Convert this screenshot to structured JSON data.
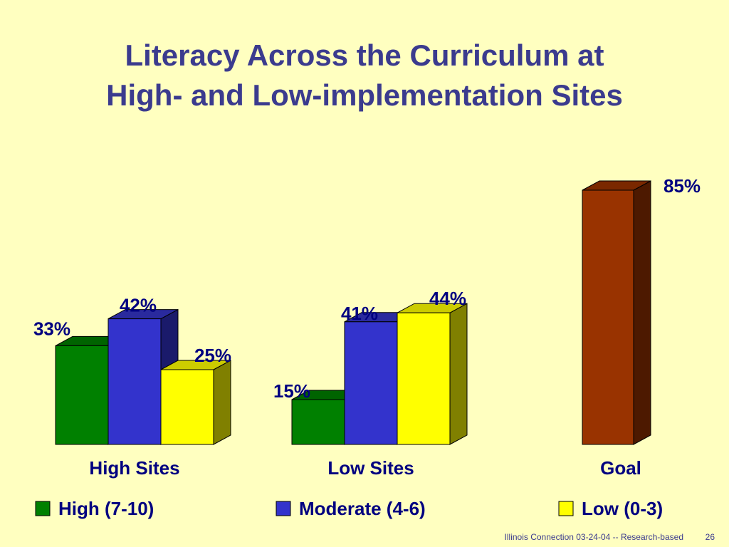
{
  "slide": {
    "title_line1": "Literacy Across the Curriculum at",
    "title_line2": "High- and Low-implementation Sites",
    "footer_text": "Illinois Connection 03-24-04 -- Research-based",
    "page_number": "26"
  },
  "chart_data": {
    "type": "bar",
    "title": "Literacy Across the Curriculum at High- and Low-implementation Sites",
    "xlabel": "",
    "ylabel": "",
    "ylim": [
      0,
      100
    ],
    "grid": false,
    "legend_position": "bottom",
    "groups": [
      {
        "category": "High Sites",
        "bars": [
          {
            "series": "High (7-10)",
            "value": 33,
            "label": "33%"
          },
          {
            "series": "Moderate (4-6)",
            "value": 42,
            "label": "42%"
          },
          {
            "series": "Low (0-3)",
            "value": 25,
            "label": "25%"
          }
        ]
      },
      {
        "category": "Low Sites",
        "bars": [
          {
            "series": "High (7-10)",
            "value": 15,
            "label": "15%"
          },
          {
            "series": "Moderate (4-6)",
            "value": 41,
            "label": "41%"
          },
          {
            "series": "Low (0-3)",
            "value": 44,
            "label": "44%"
          }
        ]
      },
      {
        "category": "Goal",
        "bars": [
          {
            "series": "Goal",
            "value": 85,
            "label": "85%"
          }
        ]
      }
    ],
    "legend": [
      {
        "name": "High (7-10)",
        "color": "#008000"
      },
      {
        "name": "Moderate (4-6)",
        "color": "#3333CC"
      },
      {
        "name": "Low (0-3)",
        "color": "#FFFF00"
      }
    ],
    "colors": {
      "High (7-10)": {
        "front": "#008000",
        "side": "#004A00",
        "top": "#006400"
      },
      "Moderate (4-6)": {
        "front": "#3333CC",
        "side": "#1A1A6B",
        "top": "#2A2A9E"
      },
      "Low (0-3)": {
        "front": "#FFFF00",
        "side": "#808000",
        "top": "#CCCC00"
      },
      "Goal": {
        "front": "#993300",
        "side": "#4D1900",
        "top": "#7A2800"
      }
    },
    "label_color": "#000080",
    "title_color": "#3B3B8E",
    "background": "#FFFFC0"
  }
}
